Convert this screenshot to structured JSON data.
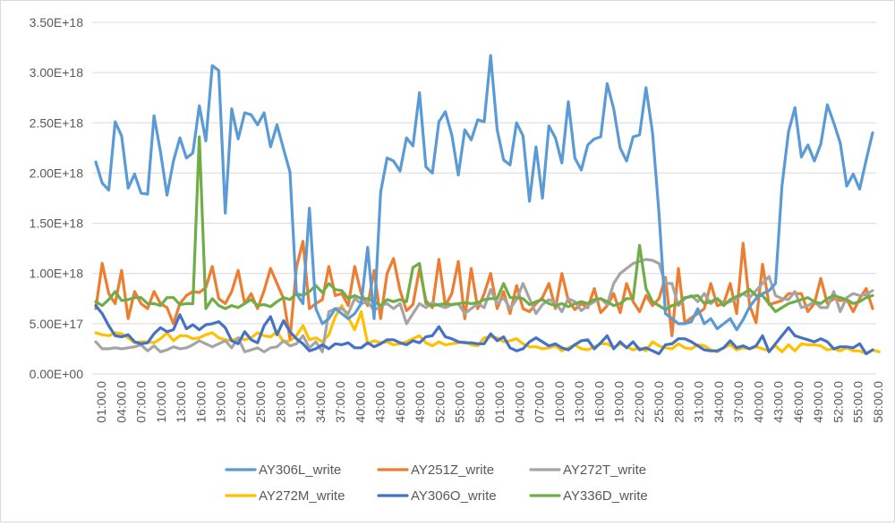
{
  "chart_data": {
    "type": "line",
    "title": "",
    "xlabel": "",
    "ylabel": "",
    "ylim": [
      0,
      3.5e+18
    ],
    "yticks": [
      "0.00E+00",
      "5.00E+17",
      "1.00E+18",
      "1.50E+18",
      "2.00E+18",
      "2.50E+18",
      "3.00E+18",
      "3.50E+18"
    ],
    "grid": "horizontal",
    "legend_position": "bottom",
    "x_tick_labels": [
      "01:00.0",
      "04:00.0",
      "07:00.0",
      "10:00.0",
      "13:00.0",
      "16:00.0",
      "19:00.0",
      "22:00.0",
      "25:00.0",
      "28:00.0",
      "31:00.0",
      "34:00.0",
      "37:00.0",
      "40:00.0",
      "43:00.0",
      "46:00.0",
      "49:00.0",
      "52:00.0",
      "55:00.0",
      "58:00.0",
      "01:00.0",
      "04:00.0",
      "07:00.0",
      "10:00.0",
      "13:00.0",
      "16:00.0",
      "19:00.0",
      "22:00.0",
      "25:00.0",
      "28:00.0",
      "31:00.0",
      "34:00.0",
      "37:00.0",
      "40:00.0",
      "43:00.0",
      "46:00.0",
      "49:00.0",
      "52:00.0",
      "55:00.0",
      "58:00.0"
    ],
    "series": [
      {
        "name": "AY306L_write",
        "color": "#5b9bd5",
        "values": [
          2.11e+18,
          1.9e+18,
          1.83e+18,
          2.51e+18,
          2.37e+18,
          1.85e+18,
          1.99e+18,
          1.8e+18,
          1.79e+18,
          2.57e+18,
          2.21e+18,
          1.78e+18,
          2.12e+18,
          2.35e+18,
          2.15e+18,
          2.2e+18,
          2.67e+18,
          2.32e+18,
          3.07e+18,
          3.02e+18,
          1.6e+18,
          2.64e+18,
          2.34e+18,
          2.6e+18,
          2.58e+18,
          2.48e+18,
          2.6e+18,
          2.26e+18,
          2.48e+18,
          2.24e+18,
          2.01e+18,
          8e+17,
          7e+17,
          1.65e+18,
          6.5e+17,
          5e+17,
          5.5e+17,
          6.5e+17,
          6e+17,
          5.5e+17,
          6e+17,
          7e+17,
          1.26e+18,
          5.5e+17,
          1.81e+18,
          2.15e+18,
          2.12e+18,
          2.02e+18,
          2.35e+18,
          2.27e+18,
          2.8e+18,
          2.06e+18,
          2e+18,
          2.51e+18,
          2.61e+18,
          2.38e+18,
          1.98e+18,
          2.43e+18,
          2.33e+18,
          2.53e+18,
          2.51e+18,
          3.17e+18,
          2.43e+18,
          2.13e+18,
          2.08e+18,
          2.5e+18,
          2.37e+18,
          1.72e+18,
          2.26e+18,
          1.75e+18,
          2.47e+18,
          2.35e+18,
          2.1e+18,
          2.71e+18,
          2.15e+18,
          2.03e+18,
          2.28e+18,
          2.34e+18,
          2.36e+18,
          2.89e+18,
          2.64e+18,
          2.25e+18,
          2.12e+18,
          2.36e+18,
          2.38e+18,
          2.85e+18,
          2.4e+18,
          1.6e+18,
          6e+17,
          5.5e+17,
          5e+17,
          5e+17,
          5.2e+17,
          6.5e+17,
          5e+17,
          5.5e+17,
          4.5e+17,
          5e+17,
          5.5e+17,
          4.4e+17,
          5.4e+17,
          6.7e+17,
          7.5e+17,
          8e+17,
          8.3e+17,
          9e+17,
          1.87e+18,
          2.41e+18,
          2.65e+18,
          2.16e+18,
          2.28e+18,
          2.12e+18,
          2.29e+18,
          2.68e+18,
          2.5e+18,
          2.3e+18,
          1.87e+18,
          1.99e+18,
          1.84e+18,
          2.13e+18,
          2.4e+18
        ]
      },
      {
        "name": "AY251Z_write",
        "color": "#ed7d31",
        "values": [
          6.5e+17,
          1.1e+18,
          8e+17,
          7e+17,
          1.03e+18,
          5.5e+17,
          8.2e+17,
          7e+17,
          6.5e+17,
          8.2e+17,
          7e+17,
          6.6e+17,
          5e+17,
          7e+17,
          7.8e+17,
          8.2e+17,
          8.1e+17,
          8.6e+17,
          1.07e+18,
          7.5e+17,
          7e+17,
          8.2e+17,
          1.03e+18,
          7e+17,
          8e+17,
          6.5e+17,
          8.3e+17,
          1.05e+18,
          9e+17,
          7.5e+17,
          3.5e+17,
          1.06e+18,
          1.32e+18,
          6.5e+17,
          7e+17,
          7.4e+17,
          1.07e+18,
          7.8e+17,
          8e+17,
          6.8e+17,
          1.07e+18,
          8e+17,
          6.8e+17,
          1.03e+18,
          5.5e+17,
          1e+18,
          1.15e+18,
          8.3e+17,
          6.3e+17,
          6.9e+17,
          1.05e+18,
          7.3e+17,
          6.6e+17,
          1.14e+18,
          6.8e+17,
          8e+17,
          1.12e+18,
          5.5e+17,
          1.05e+18,
          6.5e+17,
          8e+17,
          1e+18,
          6.5e+17,
          8.2e+17,
          6e+17,
          8.8e+17,
          6.5e+17,
          6.2e+17,
          7e+17,
          7.6e+17,
          9e+17,
          6.5e+17,
          1e+18,
          7.3e+17,
          6.4e+17,
          7e+17,
          6.6e+17,
          8.5e+17,
          6.1e+17,
          6.8e+17,
          8e+17,
          6.1e+17,
          9e+17,
          7.2e+17,
          6.2e+17,
          7.8e+17,
          6.8e+17,
          7.5e+17,
          9.6e+17,
          3.8e+17,
          1.05e+18,
          5.1e+17,
          5.6e+17,
          6e+17,
          6.5e+17,
          9e+17,
          6.8e+17,
          7e+17,
          9e+17,
          6e+17,
          1.3e+18,
          6.8e+17,
          5.1e+17,
          1.09e+18,
          6.9e+17,
          7.1e+17,
          7.3e+17,
          8e+17,
          8e+17,
          8e+17,
          6.2e+17,
          7e+17,
          9.5e+17,
          7e+17,
          7.5e+17,
          7.3e+17,
          7.4e+17,
          6.2e+17,
          7.5e+17,
          8.5e+17,
          6.5e+17
        ]
      },
      {
        "name": "AY272T_write",
        "color": "#a5a5a5",
        "values": [
          3.2e+17,
          2.5e+17,
          2.5e+17,
          2.6e+17,
          2.5e+17,
          2.6e+17,
          2.7e+17,
          2.9e+17,
          2.3e+17,
          2.8e+17,
          2.2e+17,
          2.4e+17,
          2.7e+17,
          2.5e+17,
          2.6e+17,
          2.9e+17,
          3.3e+17,
          3e+17,
          2.7e+17,
          3e+17,
          3.3e+17,
          2.6e+17,
          3.6e+17,
          2.2e+17,
          2.4e+17,
          2.6e+17,
          2.2e+17,
          2.6e+17,
          2.7e+17,
          3.3e+17,
          2.8e+17,
          3e+17,
          3.8e+17,
          2.6e+17,
          3.2e+17,
          2.2e+17,
          6.2e+17,
          6.5e+17,
          6.5e+17,
          6e+17,
          7.5e+17,
          7e+17,
          7.2e+17,
          6.3e+17,
          6.8e+17,
          7e+17,
          6.5e+17,
          7e+17,
          5e+17,
          6e+17,
          7e+17,
          6.6e+17,
          7.1e+17,
          6.8e+17,
          6.6e+17,
          6.9e+17,
          7e+17,
          6e+17,
          6.5e+17,
          7e+17,
          6.6e+17,
          8.4e+17,
          7e+17,
          7.6e+17,
          6.5e+17,
          7.4e+17,
          9e+17,
          7.5e+17,
          6e+17,
          6.9e+17,
          7.4e+17,
          7.1e+17,
          6.2e+17,
          7.5e+17,
          7.2e+17,
          6.3e+17,
          6.8e+17,
          7.2e+17,
          7.5e+17,
          6.9e+17,
          9e+17,
          1e+18,
          1.05e+18,
          1.1e+18,
          1.12e+18,
          1.14e+18,
          1.13e+18,
          1.1e+18,
          9e+17,
          9e+17,
          6.8e+17,
          7.5e+17,
          7.8e+17,
          7.2e+17,
          8e+17,
          7e+17,
          7.5e+17,
          7e+17,
          7.2e+17,
          7.5e+17,
          8e+17,
          7.6e+17,
          8.3e+17,
          9e+17,
          9.7e+17,
          7.8e+17,
          7.5e+17,
          7.4e+17,
          8.2e+17,
          6.6e+17,
          6.8e+17,
          7.2e+17,
          6.6e+17,
          6.6e+17,
          8.2e+17,
          6.2e+17,
          7.6e+17,
          8e+17,
          7.8e+17,
          7.9e+17,
          8.3e+17
        ]
      },
      {
        "name": "AY272M_write",
        "color": "#ffc000",
        "values": [
          4.1e+17,
          3.9e+17,
          3.8e+17,
          4.1e+17,
          4e+17,
          3.6e+17,
          3.1e+17,
          3.2e+17,
          3.2e+17,
          3.1e+17,
          3.5e+17,
          4.1e+17,
          3.3e+17,
          3.8e+17,
          3.8e+17,
          3.5e+17,
          3.6e+17,
          3.9e+17,
          4.1e+17,
          3.6e+17,
          3.4e+17,
          3.3e+17,
          3.6e+17,
          3.4e+17,
          3.6e+17,
          4.1e+17,
          3.8e+17,
          3.7e+17,
          4.2e+17,
          3.2e+17,
          3.3e+17,
          3.8e+17,
          4.8e+17,
          3.4e+17,
          3.6e+17,
          3.2e+17,
          3.9e+17,
          5.7e+17,
          6.8e+17,
          5.6e+17,
          4.4e+17,
          6.2e+17,
          3e+17,
          3.3e+17,
          3.1e+17,
          3.2e+17,
          2.9e+17,
          3e+17,
          3.2e+17,
          3.5e+17,
          3.8e+17,
          3.1e+17,
          2.8e+17,
          3.2e+17,
          2.9e+17,
          3e+17,
          3.1e+17,
          3.2e+17,
          2.9e+17,
          2.8e+17,
          3.6e+17,
          3.7e+17,
          3.6e+17,
          3.2e+17,
          3.3e+17,
          3.5e+17,
          3e+17,
          2.7e+17,
          2.7e+17,
          2.5e+17,
          2.6e+17,
          2.8e+17,
          2.3e+17,
          2.6e+17,
          2.9e+17,
          2.5e+17,
          2.4e+17,
          2.7e+17,
          3e+17,
          3e+17,
          2.6e+17,
          3e+17,
          2.7e+17,
          2.4e+17,
          2.6e+17,
          2.3e+17,
          3.2e+17,
          2.8e+17,
          2.6e+17,
          2.5e+17,
          3e+17,
          2.6e+17,
          2.5e+17,
          2.9e+17,
          2.8e+17,
          2.4e+17,
          2.2e+17,
          2.6e+17,
          2.9e+17,
          2.4e+17,
          2.6e+17,
          2.5e+17,
          2.7e+17,
          2.5e+17,
          2.3e+17,
          2.8e+17,
          2.2e+17,
          2.9e+17,
          2.3e+17,
          3e+17,
          2.9e+17,
          2.9e+17,
          2.8e+17,
          2.4e+17,
          2.5e+17,
          2.3e+17,
          2.6e+17,
          2.3e+17,
          2.3e+17,
          2e+17,
          2.4e+17,
          2.2e+17
        ]
      },
      {
        "name": "AY306O_write",
        "color": "#4472c4",
        "values": [
          6.8e+17,
          6e+17,
          4.8e+17,
          3.8e+17,
          3.7e+17,
          3.9e+17,
          3.2e+17,
          3e+17,
          3.1e+17,
          4e+17,
          4.6e+17,
          4.2e+17,
          4.4e+17,
          5.9e+17,
          4.5e+17,
          4.9e+17,
          4.4e+17,
          4.9e+17,
          5e+17,
          5.2e+17,
          4.6e+17,
          3.3e+17,
          3e+17,
          4.2e+17,
          3.4e+17,
          3.1e+17,
          4.8e+17,
          5.7e+17,
          3.9e+17,
          5.3e+17,
          4.2e+17,
          3.5e+17,
          3e+17,
          2.3e+17,
          2.5e+17,
          2.9e+17,
          2.5e+17,
          3e+17,
          2.9e+17,
          3.1e+17,
          2.6e+17,
          2.6e+17,
          3.1e+17,
          2.7e+17,
          3e+17,
          3.4e+17,
          3.4e+17,
          3.1e+17,
          2.9e+17,
          3.3e+17,
          3.1e+17,
          3.7e+17,
          3.8e+17,
          4.7e+17,
          3.7e+17,
          3.5e+17,
          3.2e+17,
          3.1e+17,
          3.1e+17,
          3e+17,
          3e+17,
          4e+17,
          3.3e+17,
          3.7e+17,
          2.6e+17,
          2.3e+17,
          2.5e+17,
          3.2e+17,
          3.6e+17,
          3.2e+17,
          2.8e+17,
          3e+17,
          2.6e+17,
          2.4e+17,
          2.9e+17,
          3.3e+17,
          3.4e+17,
          2.5e+17,
          3.1e+17,
          3.8e+17,
          2.5e+17,
          3.2e+17,
          2.6e+17,
          3.2e+17,
          2.4e+17,
          2.6e+17,
          2.3e+17,
          2e+17,
          2.9e+17,
          3e+17,
          3.5e+17,
          3.5e+17,
          3.2e+17,
          2.8e+17,
          2.4e+17,
          2.3e+17,
          2.3e+17,
          2.6e+17,
          3.3e+17,
          2.6e+17,
          2.8e+17,
          2.5e+17,
          2.8e+17,
          3.8e+17,
          2.2e+17,
          3e+17,
          3.8e+17,
          4.6e+17,
          3.8e+17,
          3.6e+17,
          3.4e+17,
          3.2e+17,
          3.5e+17,
          3.2e+17,
          2.5e+17,
          2.7e+17,
          2.7e+17,
          2.6e+17,
          3e+17,
          2e+17,
          2.4e+17
        ]
      },
      {
        "name": "AY336D_write",
        "color": "#70ad47",
        "values": [
          7.2e+17,
          6.8e+17,
          7.4e+17,
          8.2e+17,
          7.3e+17,
          7.4e+17,
          7.6e+17,
          7.6e+17,
          7e+17,
          7e+17,
          6.8e+17,
          7.6e+17,
          7.6e+17,
          6.9e+17,
          7e+17,
          7e+17,
          2.36e+18,
          6.5e+17,
          7.5e+17,
          6.8e+17,
          6.5e+17,
          6.8e+17,
          6.6e+17,
          7e+17,
          7.4e+17,
          6.8e+17,
          6.9e+17,
          6.7e+17,
          7.2e+17,
          7.6e+17,
          7.4e+17,
          8e+17,
          7.8e+17,
          8.2e+17,
          8.8e+17,
          8.1e+17,
          9e+17,
          8.4e+17,
          8.3e+17,
          7.5e+17,
          7.8e+17,
          7.5e+17,
          7.5e+17,
          7.2e+17,
          6.8e+17,
          7.4e+17,
          7.2e+17,
          7.4e+17,
          7.2e+17,
          1.06e+18,
          1.1e+18,
          7e+17,
          6.8e+17,
          6.9e+17,
          7e+17,
          6.9e+17,
          7e+17,
          7.1e+17,
          7e+17,
          7.1e+17,
          7.4e+17,
          7.5e+17,
          7.5e+17,
          9e+17,
          7.6e+17,
          7.6e+17,
          7.5e+17,
          6.9e+17,
          7.2e+17,
          7.4e+17,
          7e+17,
          6.8e+17,
          7e+17,
          6.7e+17,
          7e+17,
          7.2e+17,
          7e+17,
          7.4e+17,
          7.5e+17,
          7.2e+17,
          6.8e+17,
          7e+17,
          7.5e+17,
          7.5e+17,
          1.28e+18,
          8.5e+17,
          7.2e+17,
          6.8e+17,
          6.4e+17,
          6.8e+17,
          7e+17,
          7.6e+17,
          7.7e+17,
          7.8e+17,
          7e+17,
          7.2e+17,
          7.5e+17,
          6.8e+17,
          7.4e+17,
          7.7e+17,
          8e+17,
          8.4e+17,
          7.8e+17,
          7.8e+17,
          7e+17,
          6.2e+17,
          6.6e+17,
          7e+17,
          7.2e+17,
          7.4e+17,
          7.6e+17,
          7.2e+17,
          7e+17,
          7.5e+17,
          7.8e+17,
          7.6e+17,
          7.4e+17,
          7e+17,
          7.2e+17,
          7.6e+17,
          7.8e+17
        ]
      }
    ]
  }
}
